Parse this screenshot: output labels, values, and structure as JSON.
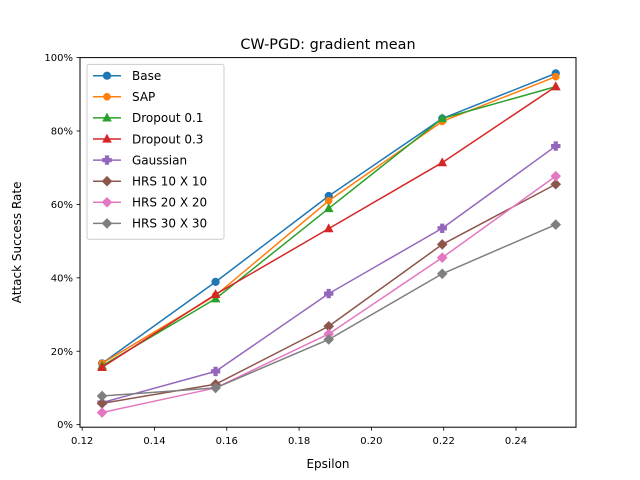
{
  "chart_data": {
    "type": "line",
    "title": "CW-PGD: gradient mean",
    "xlabel": "Epsilon",
    "ylabel": "Attack Success Rate",
    "xlim": [
      0.1194,
      0.2566
    ],
    "ylim": [
      -0.007,
      1.0
    ],
    "x": [
      0.1255,
      0.1569,
      0.1882,
      0.2196,
      0.251
    ],
    "xticks": [
      0.12,
      0.14,
      0.16,
      0.18,
      0.2,
      0.22,
      0.24
    ],
    "xtick_labels": [
      "0.12",
      "0.14",
      "0.16",
      "0.18",
      "0.20",
      "0.22",
      "0.24"
    ],
    "yticks": [
      0,
      0.2,
      0.4,
      0.6,
      0.8,
      1.0
    ],
    "ytick_labels": [
      "0%",
      "20%",
      "40%",
      "60%",
      "80%",
      "100%"
    ],
    "grid": false,
    "legend_position": "upper-left",
    "series": [
      {
        "name": "Base",
        "color": "#1f77b4",
        "marker": "circle",
        "values": [
          0.167,
          0.389,
          0.623,
          0.834,
          0.957
        ]
      },
      {
        "name": "SAP",
        "color": "#ff7f0e",
        "marker": "octagon",
        "values": [
          0.167,
          0.352,
          0.61,
          0.826,
          0.948
        ]
      },
      {
        "name": "Dropout 0.1",
        "color": "#2ca02c",
        "marker": "triangle-up",
        "values": [
          0.16,
          0.343,
          0.589,
          0.834,
          0.921
        ]
      },
      {
        "name": "Dropout 0.3",
        "color": "#d62728",
        "marker": "triangle-up",
        "values": [
          0.156,
          0.355,
          0.534,
          0.714,
          0.921
        ]
      },
      {
        "name": "Gaussian",
        "color": "#9467bd",
        "marker": "plus",
        "values": [
          0.06,
          0.145,
          0.357,
          0.535,
          0.759
        ]
      },
      {
        "name": "HRS 10 X 10",
        "color": "#8c564b",
        "marker": "diamond",
        "values": [
          0.058,
          0.11,
          0.268,
          0.491,
          0.655
        ]
      },
      {
        "name": "HRS 20 X 20",
        "color": "#e377c2",
        "marker": "diamond",
        "values": [
          0.033,
          0.1,
          0.247,
          0.455,
          0.677
        ]
      },
      {
        "name": "HRS 30 X 30",
        "color": "#7f7f7f",
        "marker": "diamond",
        "values": [
          0.078,
          0.1,
          0.232,
          0.411,
          0.545
        ]
      }
    ]
  }
}
